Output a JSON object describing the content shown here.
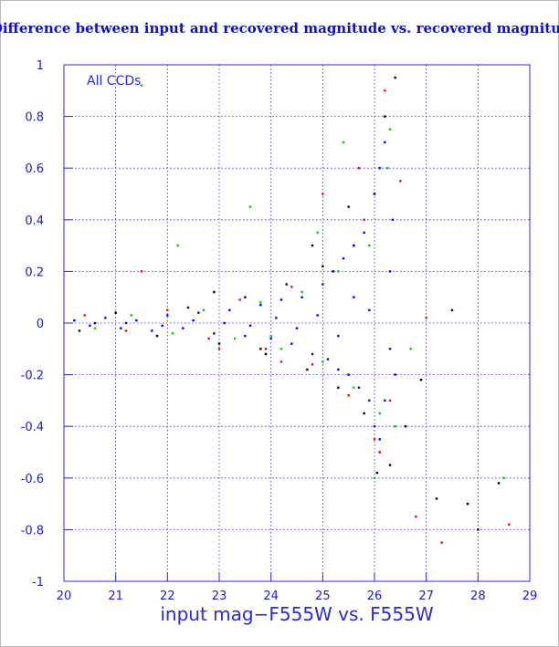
{
  "chart_data": {
    "type": "scatter",
    "title": "Difference between input and recovered magnitude vs. recovered magnitude",
    "x_label": "input mag−F555W vs. F555W",
    "annotation": "All CCDs",
    "xlim": [
      20,
      29
    ],
    "ylim": [
      -1,
      1
    ],
    "xticks": [
      20,
      21,
      22,
      23,
      24,
      25,
      26,
      27,
      28,
      29
    ],
    "yticks": [
      -1,
      -0.8,
      -0.6,
      -0.4,
      -0.2,
      0,
      0.2,
      0.4,
      0.6,
      0.8,
      1
    ],
    "grid": true,
    "series": [
      {
        "color": "#000000",
        "x": [
          20.3,
          21.0,
          21.8,
          22.4,
          23.0,
          23.5,
          23.9,
          24.3,
          24.7,
          25.0,
          25.3,
          25.6,
          25.8,
          26.0,
          26.1,
          26.2,
          26.3,
          26.4,
          26.6,
          26.9,
          27.2,
          27.5,
          27.8,
          28.0,
          28.4,
          25.5,
          24.8,
          23.8,
          22.9,
          26.05
        ],
        "values": [
          -0.03,
          0.04,
          -0.05,
          0.06,
          -0.08,
          0.1,
          -0.12,
          0.15,
          -0.18,
          0.22,
          -0.25,
          0.3,
          -0.35,
          0.5,
          -0.5,
          0.8,
          -0.55,
          0.95,
          -0.4,
          -0.22,
          -0.68,
          0.05,
          -0.7,
          -0.8,
          -0.62,
          0.45,
          0.3,
          -0.1,
          0.12,
          -0.58
        ]
      },
      {
        "color": "#ff0000",
        "x": [
          20.4,
          21.2,
          22.0,
          22.8,
          23.4,
          23.9,
          24.4,
          24.8,
          25.2,
          25.5,
          25.8,
          26.0,
          26.2,
          26.3,
          26.5,
          26.8,
          27.0,
          27.3,
          28.6,
          25.0,
          24.2,
          21.5,
          23.0,
          26.1,
          25.7
        ],
        "values": [
          0.03,
          -0.03,
          0.05,
          -0.06,
          0.09,
          -0.1,
          0.14,
          -0.16,
          0.2,
          -0.28,
          0.4,
          -0.45,
          0.9,
          -0.3,
          0.55,
          -0.75,
          0.02,
          -0.85,
          -0.78,
          0.5,
          -0.15,
          0.2,
          -0.1,
          -0.5,
          0.6
        ]
      },
      {
        "color": "#00cc00",
        "x": [
          20.6,
          21.3,
          22.1,
          22.7,
          23.3,
          23.8,
          24.2,
          24.6,
          25.0,
          25.3,
          25.6,
          25.9,
          26.1,
          26.25,
          26.4,
          26.7,
          24.9,
          23.6,
          22.2,
          21.5,
          26.0,
          25.4,
          26.3,
          24.0,
          28.5
        ],
        "values": [
          -0.02,
          0.03,
          -0.04,
          0.05,
          -0.06,
          0.08,
          -0.1,
          0.12,
          -0.15,
          0.2,
          -0.25,
          0.3,
          -0.35,
          0.6,
          -0.4,
          -0.1,
          0.35,
          0.45,
          0.3,
          0.92,
          -0.6,
          0.7,
          0.75,
          -0.05,
          -0.6
        ]
      },
      {
        "color": "#0000ff",
        "x": [
          20.2,
          20.5,
          20.8,
          21.1,
          21.4,
          21.7,
          22.0,
          22.3,
          22.6,
          22.9,
          23.2,
          23.5,
          23.8,
          24.0,
          24.2,
          24.4,
          24.6,
          24.8,
          25.0,
          25.1,
          25.2,
          25.3,
          25.4,
          25.5,
          25.6,
          25.7,
          25.8,
          25.9,
          26.0,
          26.0,
          26.1,
          26.1,
          26.2,
          26.2,
          26.3,
          26.3,
          26.35,
          26.4,
          25.9,
          25.6,
          25.3,
          24.9,
          24.5,
          24.1,
          23.6,
          23.1,
          22.5,
          21.9,
          21.2,
          20.6
        ],
        "values": [
          0.01,
          -0.01,
          0.02,
          -0.02,
          0.01,
          -0.03,
          0.03,
          -0.02,
          0.04,
          -0.04,
          0.05,
          -0.05,
          0.07,
          -0.06,
          0.09,
          -0.08,
          0.1,
          -0.12,
          0.15,
          -0.14,
          0.2,
          -0.18,
          0.25,
          -0.2,
          0.3,
          -0.25,
          0.35,
          -0.3,
          0.5,
          -0.4,
          0.6,
          -0.45,
          0.7,
          -0.3,
          0.2,
          -0.1,
          0.4,
          -0.2,
          0.05,
          0.1,
          -0.05,
          0.03,
          -0.02,
          0.02,
          -0.01,
          0.0,
          0.01,
          -0.01,
          0.0,
          0.0
        ]
      }
    ]
  }
}
